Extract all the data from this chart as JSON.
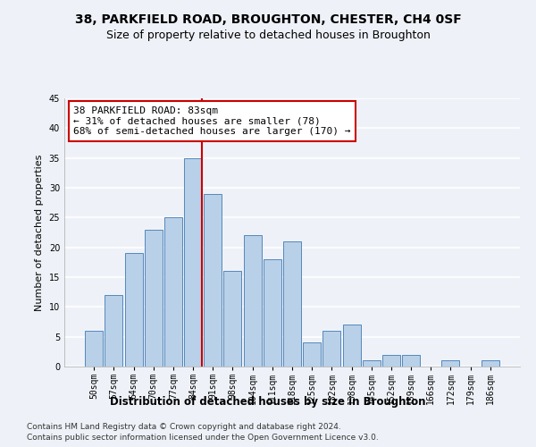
{
  "title1": "38, PARKFIELD ROAD, BROUGHTON, CHESTER, CH4 0SF",
  "title2": "Size of property relative to detached houses in Broughton",
  "xlabel": "Distribution of detached houses by size in Broughton",
  "ylabel": "Number of detached properties",
  "categories": [
    "50sqm",
    "57sqm",
    "64sqm",
    "70sqm",
    "77sqm",
    "84sqm",
    "91sqm",
    "98sqm",
    "104sqm",
    "111sqm",
    "118sqm",
    "125sqm",
    "132sqm",
    "138sqm",
    "145sqm",
    "152sqm",
    "159sqm",
    "166sqm",
    "172sqm",
    "179sqm",
    "186sqm"
  ],
  "values": [
    6,
    12,
    19,
    23,
    25,
    35,
    29,
    16,
    22,
    18,
    21,
    4,
    6,
    7,
    1,
    2,
    2,
    0,
    1,
    0,
    1
  ],
  "bar_color": "#b8d0e8",
  "bar_edge_color": "#5588bb",
  "vline_bar_index": 5,
  "vline_color": "#cc0000",
  "annotation_line1": "38 PARKFIELD ROAD: 83sqm",
  "annotation_line2": "← 31% of detached houses are smaller (78)",
  "annotation_line3": "68% of semi-detached houses are larger (170) →",
  "annotation_box_facecolor": "#ffffff",
  "annotation_box_edgecolor": "#cc0000",
  "ylim": [
    0,
    45
  ],
  "yticks": [
    0,
    5,
    10,
    15,
    20,
    25,
    30,
    35,
    40,
    45
  ],
  "footer1": "Contains HM Land Registry data © Crown copyright and database right 2024.",
  "footer2": "Contains public sector information licensed under the Open Government Licence v3.0.",
  "background_color": "#eef2f8",
  "grid_color": "#ffffff",
  "title1_fontsize": 10,
  "title2_fontsize": 9,
  "xlabel_fontsize": 8.5,
  "ylabel_fontsize": 8,
  "tick_fontsize": 7,
  "annotation_fontsize": 8,
  "footer_fontsize": 6.5
}
